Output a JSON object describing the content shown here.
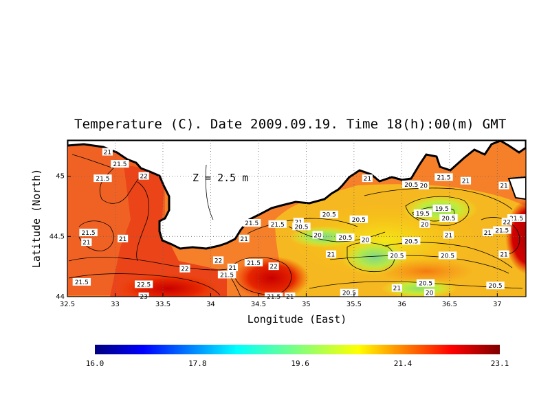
{
  "title": "Temperature (C). Date 2009.09.19. Time 18(h):00(m) GMT",
  "depth_label": "Z = 2.5 m",
  "chart_data": {
    "type": "heatmap",
    "title": "Temperature (C). Date 2009.09.19. Time 18(h):00(m) GMT",
    "xlabel": "Longitude (East)",
    "ylabel": "Latitude (North)",
    "xlim": [
      32.5,
      37.3
    ],
    "ylim": [
      44.0,
      45.3
    ],
    "x_ticks": [
      "32.5",
      "33",
      "33.5",
      "34",
      "34.5",
      "35",
      "35.5",
      "36",
      "36.5",
      "37"
    ],
    "y_ticks": [
      "44",
      "44.5",
      "45"
    ],
    "grid": true,
    "colorbar": {
      "min": 16.0,
      "max": 23.1,
      "tick_labels": [
        "16.0",
        "17.8",
        "19.6",
        "21.4",
        "23.1"
      ]
    },
    "contour_labels": [
      {
        "lon": 32.92,
        "lat": 45.2,
        "text": "21"
      },
      {
        "lon": 33.05,
        "lat": 45.1,
        "text": "21.5"
      },
      {
        "lon": 32.87,
        "lat": 44.98,
        "text": "21.5"
      },
      {
        "lon": 33.3,
        "lat": 45.0,
        "text": "22"
      },
      {
        "lon": 32.72,
        "lat": 44.53,
        "text": "21.5"
      },
      {
        "lon": 32.7,
        "lat": 44.45,
        "text": "21"
      },
      {
        "lon": 33.08,
        "lat": 44.48,
        "text": "21"
      },
      {
        "lon": 32.65,
        "lat": 44.12,
        "text": "21.5"
      },
      {
        "lon": 33.3,
        "lat": 44.1,
        "text": "22.5"
      },
      {
        "lon": 33.3,
        "lat": 44.0,
        "text": "23"
      },
      {
        "lon": 33.73,
        "lat": 44.23,
        "text": "22"
      },
      {
        "lon": 34.08,
        "lat": 44.3,
        "text": "22"
      },
      {
        "lon": 34.17,
        "lat": 44.18,
        "text": "21.5"
      },
      {
        "lon": 34.23,
        "lat": 44.24,
        "text": "21"
      },
      {
        "lon": 34.45,
        "lat": 44.28,
        "text": "21.5"
      },
      {
        "lon": 34.66,
        "lat": 44.25,
        "text": "22"
      },
      {
        "lon": 34.43,
        "lat": 44.61,
        "text": "21.5"
      },
      {
        "lon": 34.35,
        "lat": 44.48,
        "text": "21"
      },
      {
        "lon": 34.7,
        "lat": 44.6,
        "text": "21.5"
      },
      {
        "lon": 34.92,
        "lat": 44.62,
        "text": "21"
      },
      {
        "lon": 34.95,
        "lat": 44.58,
        "text": "20.5"
      },
      {
        "lon": 34.66,
        "lat": 44.0,
        "text": "21.5"
      },
      {
        "lon": 34.83,
        "lat": 44.0,
        "text": "21"
      },
      {
        "lon": 35.24,
        "lat": 44.68,
        "text": "20.5"
      },
      {
        "lon": 35.12,
        "lat": 44.51,
        "text": "20"
      },
      {
        "lon": 35.41,
        "lat": 44.49,
        "text": "20.5"
      },
      {
        "lon": 35.26,
        "lat": 44.35,
        "text": "21"
      },
      {
        "lon": 35.55,
        "lat": 44.64,
        "text": "20.5"
      },
      {
        "lon": 35.62,
        "lat": 44.47,
        "text": "20"
      },
      {
        "lon": 35.45,
        "lat": 44.03,
        "text": "20.5"
      },
      {
        "lon": 35.64,
        "lat": 44.98,
        "text": "21"
      },
      {
        "lon": 35.95,
        "lat": 44.34,
        "text": "20.5"
      },
      {
        "lon": 35.95,
        "lat": 44.07,
        "text": "21"
      },
      {
        "lon": 36.1,
        "lat": 44.46,
        "text": "20.5"
      },
      {
        "lon": 36.1,
        "lat": 44.93,
        "text": "20.5"
      },
      {
        "lon": 36.23,
        "lat": 44.92,
        "text": "20"
      },
      {
        "lon": 36.22,
        "lat": 44.69,
        "text": "19.5"
      },
      {
        "lon": 36.24,
        "lat": 44.6,
        "text": "20"
      },
      {
        "lon": 36.42,
        "lat": 44.73,
        "text": "19.5"
      },
      {
        "lon": 36.44,
        "lat": 44.99,
        "text": "21.5"
      },
      {
        "lon": 36.49,
        "lat": 44.65,
        "text": "20.5"
      },
      {
        "lon": 36.49,
        "lat": 44.51,
        "text": "21"
      },
      {
        "lon": 36.48,
        "lat": 44.34,
        "text": "20.5"
      },
      {
        "lon": 36.25,
        "lat": 44.11,
        "text": "20.5"
      },
      {
        "lon": 36.29,
        "lat": 44.03,
        "text": "20"
      },
      {
        "lon": 36.67,
        "lat": 44.96,
        "text": "21"
      },
      {
        "lon": 36.9,
        "lat": 44.53,
        "text": "21"
      },
      {
        "lon": 37.05,
        "lat": 44.55,
        "text": "21.5"
      },
      {
        "lon": 37.07,
        "lat": 44.92,
        "text": "21"
      },
      {
        "lon": 37.2,
        "lat": 44.65,
        "text": "21.5"
      },
      {
        "lon": 37.1,
        "lat": 44.62,
        "text": "22"
      },
      {
        "lon": 37.07,
        "lat": 44.35,
        "text": "21"
      },
      {
        "lon": 36.98,
        "lat": 44.09,
        "text": "20.5"
      }
    ]
  }
}
